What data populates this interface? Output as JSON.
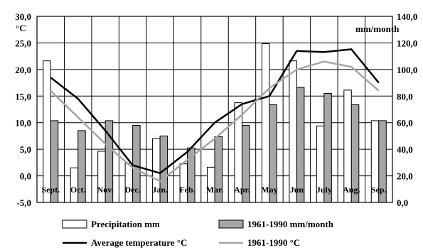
{
  "chart_data": {
    "type": "bar",
    "categories": [
      "Sept.",
      "Oct.",
      "Nov.",
      "Dec.",
      "Jan.",
      "Feb.",
      "Mar.",
      "Apr.",
      "May",
      "Jun",
      "July",
      "Aug.",
      "Sep."
    ],
    "series": [
      {
        "name": "Precipitation mm",
        "kind": "bar",
        "axis": "right",
        "color": "#ffffff",
        "values": [
          106.5,
          26.0,
          38.5,
          29.5,
          48.0,
          29.0,
          26.5,
          75.0,
          119.5,
          106.5,
          57.5,
          84.5,
          61.5
        ]
      },
      {
        "name": "1961-1990 mm/month",
        "kind": "bar",
        "axis": "right",
        "color": "#a6a6a6",
        "values": [
          61.5,
          54.0,
          61.5,
          58.0,
          50.0,
          41.0,
          49.5,
          58.0,
          73.5,
          86.5,
          82.0,
          73.5,
          61.5
        ]
      },
      {
        "name": "Average temperature °C",
        "kind": "line",
        "axis": "left",
        "color": "#000000",
        "values": [
          18.5,
          14.5,
          8.5,
          2.0,
          0.5,
          4.5,
          10.0,
          13.5,
          15.0,
          23.5,
          23.3,
          23.8,
          17.5
        ]
      },
      {
        "name": "1961-1990 °C",
        "kind": "line",
        "axis": "left",
        "color": "#a6a6a6",
        "values": [
          16.0,
          11.0,
          6.0,
          1.5,
          -1.0,
          3.0,
          7.0,
          11.5,
          16.5,
          20.0,
          21.5,
          20.5,
          16.0
        ]
      }
    ],
    "left_axis": {
      "label": "°C",
      "ylim": [
        -5,
        30
      ],
      "ticks": [
        "-5,0",
        "0,0",
        "5,0",
        "10,0",
        "15,0",
        "20,0",
        "25,0",
        "30,0"
      ]
    },
    "right_axis": {
      "label": "mm/month",
      "ylim": [
        0,
        140
      ],
      "ticks": [
        "0,0",
        "20,0",
        "40,0",
        "60,0",
        "80,0",
        "100,0",
        "120,0",
        "140,0"
      ]
    },
    "grid": true,
    "legend_position": "bottom"
  }
}
